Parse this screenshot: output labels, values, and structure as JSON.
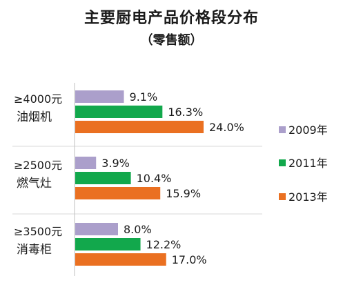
{
  "chart_data": {
    "type": "bar",
    "orientation": "horizontal",
    "title": "主要厨电产品价格段分布",
    "subtitle": "（零售额）",
    "categories": [
      {
        "price": "≥4000元",
        "product": "油烟机"
      },
      {
        "price": "≥2500元",
        "product": "燃气灶"
      },
      {
        "price": "≥3500元",
        "product": "消毒柜"
      }
    ],
    "series": [
      {
        "name": "2009年",
        "color": "#ab9fcb",
        "values": [
          9.1,
          3.9,
          8.0
        ],
        "labels": [
          "9.1%",
          "3.9%",
          "8.0%"
        ]
      },
      {
        "name": "2011年",
        "color": "#12a84c",
        "values": [
          16.3,
          10.4,
          12.2
        ],
        "labels": [
          "16.3%",
          "10.4%",
          "12.2%"
        ]
      },
      {
        "name": "2013年",
        "color": "#ea7021",
        "values": [
          24.0,
          15.9,
          17.0
        ],
        "labels": [
          "24.0%",
          "15.9%",
          "17.0%"
        ]
      }
    ],
    "xlim": [
      0,
      30
    ],
    "legend_position": "right",
    "grid": false,
    "value_unit": "%"
  }
}
